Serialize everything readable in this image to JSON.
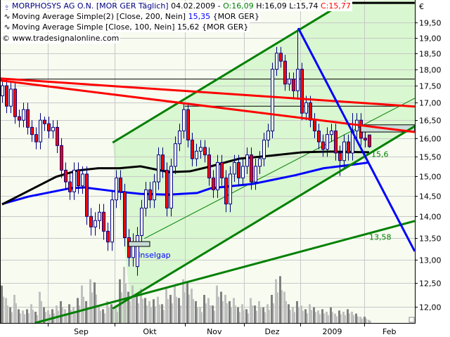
{
  "header": {
    "symbol": "MORPHOSYS AG O.N. [MOR GER  Täglich]",
    "date": "04.02.2009 -",
    "open": "O:16,09",
    "high": "H:16,09",
    "low": "L:15,74",
    "close": "C:15,77",
    "symbol_icon": "candlestick-icon"
  },
  "legend": [
    {
      "icon": "indicator-wave-icon",
      "label": "Moving Average Simple(2) [Close, 200, Nein]",
      "value": "15,35",
      "suffix": "{MOR GER}",
      "value_color": "#0000ff",
      "line_color": "#0000ff"
    },
    {
      "icon": "indicator-wave-icon",
      "label": "Moving Average Simple [Close, 100, Nein]",
      "value": "15,62",
      "suffix": "{MOR GER}",
      "value_color": "#000000",
      "line_color": "#000000"
    }
  ],
  "copyright": "© www.tradesignalonline.com",
  "currency": "€",
  "colors": {
    "background": "#f7fbf0",
    "channel_fill": "#d9f7d0",
    "grid": "#c8c8c8",
    "up_body": "#ffffff",
    "down_body": "#ff0000",
    "wick": "#000080",
    "volume_dark": "#808080",
    "volume_light": "#c0c0c0"
  },
  "chart_data": {
    "type": "candlestick",
    "y_scale": "log",
    "ylim": [
      11.67,
      20.26
    ],
    "grid": true,
    "y_ticks": [
      "19,50",
      "19,00",
      "18,50",
      "18,00",
      "17,50",
      "17,00",
      "16,50",
      "16,00",
      "15,50",
      "15,00",
      "14,50",
      "14,00",
      "13,50",
      "13,00",
      "12,50",
      "12,00"
    ],
    "y_tick_values": [
      19.5,
      19,
      18.5,
      18,
      17.5,
      17,
      16.5,
      16,
      15.5,
      15,
      14.5,
      14,
      13.5,
      13,
      12.5,
      12
    ],
    "x_month_boundaries": [
      10.8,
      26.7,
      43.3,
      57.3,
      70.7,
      85.8
    ],
    "x_labels": [
      "Sep",
      "Okt",
      "Nov",
      "Dez",
      "2009",
      "Feb"
    ],
    "x_bar_max": 97.8,
    "candles": [
      [
        17.2,
        17.7,
        17.0,
        17.5
      ],
      [
        17.5,
        17.7,
        16.7,
        16.9
      ],
      [
        16.9,
        17.6,
        16.7,
        17.4
      ],
      [
        17.4,
        17.6,
        16.4,
        16.6
      ],
      [
        16.6,
        16.8,
        16.3,
        16.5
      ],
      [
        16.5,
        17.0,
        16.3,
        16.8
      ],
      [
        16.8,
        17.0,
        16.1,
        16.3
      ],
      [
        16.3,
        16.5,
        15.9,
        16.1
      ],
      [
        16.1,
        16.3,
        15.7,
        15.9
      ],
      [
        15.9,
        16.7,
        15.7,
        16.5
      ],
      [
        16.5,
        16.6,
        16.2,
        16.4
      ],
      [
        16.4,
        16.6,
        16.0,
        16.2
      ],
      [
        16.2,
        16.5,
        16.0,
        16.3
      ],
      [
        16.3,
        16.5,
        15.6,
        15.8
      ],
      [
        15.8,
        16.0,
        14.95,
        15.15
      ],
      [
        15.15,
        15.35,
        14.65,
        14.85
      ],
      [
        14.85,
        15.05,
        14.4,
        14.6
      ],
      [
        14.6,
        15.35,
        14.4,
        15.15
      ],
      [
        15.15,
        15.35,
        14.55,
        14.75
      ],
      [
        14.75,
        15.25,
        14.55,
        15.05
      ],
      [
        15.05,
        15.25,
        13.8,
        14.0
      ],
      [
        14.0,
        14.2,
        13.55,
        13.75
      ],
      [
        13.75,
        14.1,
        13.55,
        13.9
      ],
      [
        13.9,
        14.3,
        13.7,
        14.1
      ],
      [
        14.1,
        14.3,
        13.45,
        13.65
      ],
      [
        13.65,
        13.85,
        13.2,
        13.4
      ],
      [
        13.4,
        14.6,
        13.2,
        14.4
      ],
      [
        14.4,
        15.15,
        14.2,
        14.95
      ],
      [
        14.95,
        15.15,
        14.4,
        14.6
      ],
      [
        14.6,
        14.8,
        13.3,
        13.5
      ],
      [
        13.5,
        13.7,
        12.85,
        13.05
      ],
      [
        13.05,
        13.6,
        12.85,
        13.4
      ],
      [
        12.85,
        13.75,
        12.65,
        13.55
      ],
      [
        13.55,
        14.4,
        13.35,
        14.2
      ],
      [
        14.2,
        14.85,
        14.0,
        14.65
      ],
      [
        14.65,
        14.85,
        14.2,
        14.4
      ],
      [
        14.4,
        15.05,
        14.2,
        14.85
      ],
      [
        14.85,
        15.75,
        14.65,
        15.55
      ],
      [
        15.55,
        15.75,
        14.95,
        15.15
      ],
      [
        15.15,
        15.35,
        14.0,
        14.2
      ],
      [
        14.2,
        15.45,
        14.0,
        15.25
      ],
      [
        15.25,
        16.05,
        15.05,
        15.85
      ],
      [
        15.85,
        16.4,
        15.65,
        16.2
      ],
      [
        16.2,
        17.0,
        16.0,
        16.8
      ],
      [
        16.8,
        17.0,
        15.75,
        15.95
      ],
      [
        15.95,
        16.15,
        15.25,
        15.45
      ],
      [
        15.45,
        15.85,
        15.25,
        15.65
      ],
      [
        15.65,
        15.95,
        15.45,
        15.75
      ],
      [
        15.75,
        15.95,
        15.35,
        15.55
      ],
      [
        15.55,
        15.75,
        14.75,
        14.95
      ],
      [
        14.95,
        15.15,
        14.45,
        14.65
      ],
      [
        14.65,
        15.55,
        14.45,
        15.35
      ],
      [
        15.35,
        15.55,
        14.75,
        14.95
      ],
      [
        14.95,
        15.15,
        14.1,
        14.3
      ],
      [
        14.3,
        15.25,
        14.1,
        15.05
      ],
      [
        15.05,
        15.55,
        14.85,
        15.35
      ],
      [
        15.35,
        15.55,
        14.75,
        14.95
      ],
      [
        14.95,
        15.45,
        14.75,
        15.25
      ],
      [
        15.25,
        15.75,
        15.05,
        15.55
      ],
      [
        15.55,
        15.75,
        14.65,
        14.85
      ],
      [
        14.85,
        15.45,
        14.65,
        15.25
      ],
      [
        15.25,
        15.65,
        15.05,
        15.45
      ],
      [
        15.45,
        16.15,
        15.25,
        15.95
      ],
      [
        15.95,
        16.4,
        15.75,
        16.2
      ],
      [
        16.2,
        18.2,
        16.0,
        18.0
      ],
      [
        18.0,
        18.7,
        17.8,
        18.5
      ],
      [
        18.5,
        18.7,
        18.05,
        18.25
      ],
      [
        18.25,
        18.45,
        17.35,
        17.55
      ],
      [
        17.55,
        17.9,
        17.35,
        17.7
      ],
      [
        17.7,
        17.9,
        17.15,
        17.35
      ],
      [
        17.35,
        19.3,
        17.15,
        18.0
      ],
      [
        18.0,
        18.2,
        16.5,
        16.7
      ],
      [
        16.7,
        17.2,
        16.5,
        17.0
      ],
      [
        17.0,
        17.2,
        16.3,
        16.5
      ],
      [
        16.5,
        16.7,
        16.0,
        16.2
      ],
      [
        16.2,
        16.4,
        15.7,
        15.9
      ],
      [
        15.9,
        16.1,
        15.5,
        15.7
      ],
      [
        15.7,
        16.3,
        15.5,
        16.1
      ],
      [
        16.1,
        16.4,
        15.9,
        16.2
      ],
      [
        16.2,
        16.4,
        15.4,
        15.6
      ],
      [
        15.6,
        15.8,
        15.0,
        15.4
      ],
      [
        15.4,
        16.1,
        15.2,
        15.9
      ],
      [
        15.9,
        16.1,
        15.4,
        15.6
      ],
      [
        15.6,
        16.7,
        15.4,
        16.2
      ],
      [
        16.2,
        16.7,
        16.0,
        16.5
      ],
      [
        16.5,
        16.7,
        15.8,
        16.0
      ],
      [
        16.0,
        16.2,
        15.75,
        15.95
      ],
      [
        16.09,
        16.09,
        15.74,
        15.77
      ]
    ],
    "volume": [
      60,
      40,
      25,
      45,
      22,
      20,
      22,
      30,
      18,
      50,
      25,
      20,
      22,
      28,
      35,
      22,
      30,
      25,
      40,
      60,
      35,
      70,
      65,
      28,
      22,
      35,
      30,
      25,
      70,
      90,
      50,
      60,
      45,
      55,
      40,
      35,
      38,
      42,
      30,
      55,
      45,
      60,
      40,
      70,
      65,
      55,
      35,
      25,
      45,
      40,
      28,
      60,
      50,
      45,
      35,
      40,
      25,
      30,
      22,
      40,
      28,
      35,
      25,
      30,
      45,
      70,
      75,
      50,
      30,
      25,
      35,
      28,
      22,
      30,
      25,
      20,
      22,
      18,
      25,
      15,
      20,
      18,
      22,
      18,
      15,
      10,
      10,
      5
    ],
    "series": [
      {
        "name": "Moving Average Simple(2) [Close, 200, Nein]",
        "color": "#0000ff",
        "points": [
          [
            0,
            14.3
          ],
          [
            6.2,
            14.48
          ],
          [
            16.2,
            14.69
          ],
          [
            19.5,
            14.71
          ],
          [
            26.2,
            14.62
          ],
          [
            32.8,
            14.55
          ],
          [
            39.5,
            14.53
          ],
          [
            46.2,
            14.57
          ],
          [
            49.5,
            14.69
          ],
          [
            59.5,
            14.8
          ],
          [
            69.5,
            15.02
          ],
          [
            76.2,
            15.2
          ],
          [
            82.8,
            15.29
          ],
          [
            87,
            15.35
          ]
        ]
      },
      {
        "name": "Moving Average Simple [Close, 100, Nein]",
        "color": "#000000",
        "points": [
          [
            0,
            14.29
          ],
          [
            6.2,
            14.62
          ],
          [
            12.8,
            14.98
          ],
          [
            17.8,
            15.14
          ],
          [
            22.8,
            15.2
          ],
          [
            27.8,
            15.2
          ],
          [
            32.8,
            15.25
          ],
          [
            39.5,
            15.1
          ],
          [
            44.5,
            15.12
          ],
          [
            49.5,
            15.25
          ],
          [
            56.2,
            15.45
          ],
          [
            62.8,
            15.52
          ],
          [
            71.2,
            15.62
          ],
          [
            77.8,
            15.64
          ],
          [
            87,
            15.62
          ]
        ]
      }
    ],
    "annotations": {
      "channel_fill": [
        [
          26.2,
          15.88
        ],
        [
          81.5,
          20.21
        ],
        [
          97.8,
          20.26
        ],
        [
          97.8,
          16.33
        ],
        [
          26.2,
          11.96
        ],
        [
          26.2,
          11.67
        ],
        [
          31,
          11.67
        ]
      ],
      "lines": [
        {
          "kind": "channel-upper",
          "color": "#008000",
          "from": [
            26.2,
            15.88
          ],
          "to": [
            81.5,
            20.21
          ]
        },
        {
          "kind": "channel-lower",
          "color": "#008000",
          "from": [
            26.2,
            11.96
          ],
          "to": [
            97.8,
            16.33
          ]
        },
        {
          "kind": "channel-mid",
          "color": "#008000",
          "thin": true,
          "from": [
            33.7,
            13.48
          ],
          "to": [
            97.8,
            17.13
          ]
        },
        {
          "kind": "long-support",
          "color": "#008000",
          "from": [
            7.8,
            11.67
          ],
          "to": [
            97.8,
            13.89
          ]
        },
        {
          "kind": "resistance-1",
          "color": "#ff0000",
          "from": [
            -0.5,
            17.72
          ],
          "to": [
            97.8,
            16.89
          ]
        },
        {
          "kind": "resistance-2",
          "color": "#ff0000",
          "from": [
            -0.5,
            17.66
          ],
          "to": [
            97.8,
            16.17
          ]
        },
        {
          "kind": "downtrend",
          "color": "#0000ff",
          "from": [
            70.2,
            19.31
          ],
          "to": [
            97.8,
            13.19
          ]
        },
        {
          "kind": "horizontal-1",
          "color": "#000000",
          "thin": true,
          "from": [
            -0.5,
            17.7
          ],
          "to": [
            97.8,
            17.7
          ]
        },
        {
          "kind": "horizontal-2",
          "color": "#000000",
          "thin": true,
          "from": [
            43.3,
            16.9
          ],
          "to": [
            97.8,
            16.9
          ]
        },
        {
          "kind": "horizontal-top",
          "color": "#000000",
          "from": [
            72.8,
            20.16
          ],
          "to": [
            97.8,
            20.16
          ]
        }
      ],
      "boxes": [
        {
          "kind": "gap-box",
          "from": [
            85,
            16.37
          ],
          "to": [
            97.8,
            16.17
          ]
        },
        {
          "kind": "inselgap-box",
          "from": [
            30,
            13.41
          ],
          "to": [
            35,
            13.3
          ]
        }
      ],
      "labels": [
        {
          "text": "Inselgap",
          "at": [
            32.2,
            13.05
          ],
          "color": "#0000ff"
        },
        {
          "text": "15,6",
          "at": [
            87.5,
            15.5
          ],
          "color": "#008000"
        },
        {
          "text": "13,58",
          "at": [
            87,
            13.45
          ],
          "color": "#008000"
        }
      ]
    }
  }
}
